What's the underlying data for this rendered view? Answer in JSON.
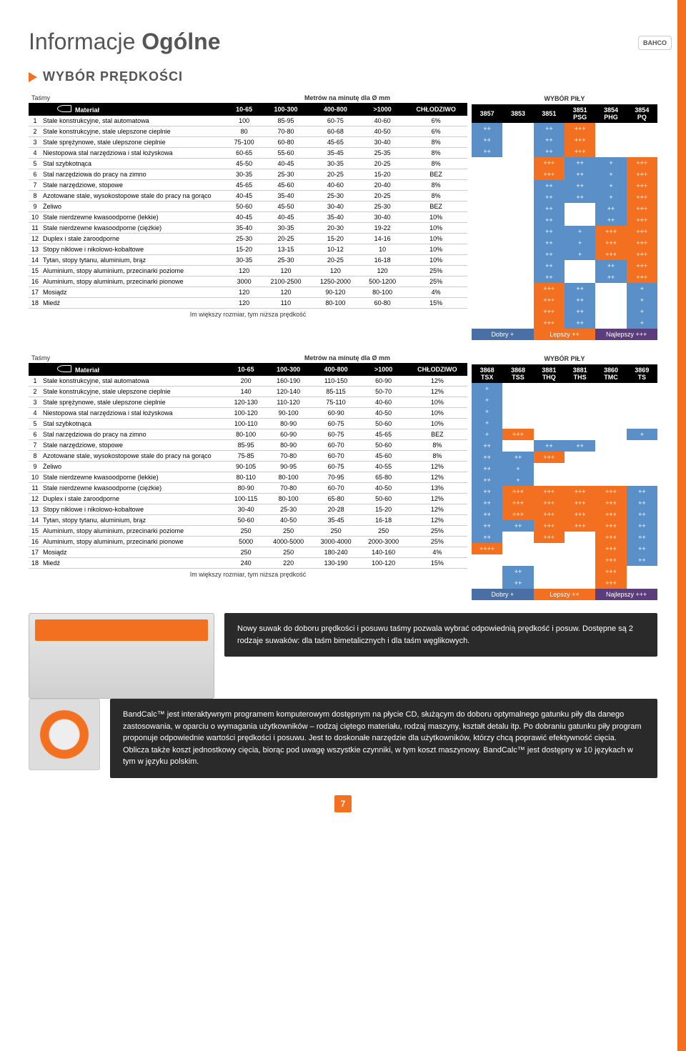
{
  "title_light": "Informacje ",
  "title_bold": "Ogólne",
  "section": "WYBÓR PRĘDKOŚCI",
  "bahco": "BAHCO",
  "tasmy": "Taśmy",
  "material": "Materiał",
  "metrow": "Metrów na minutę dla Ø mm",
  "wybor": "WYBÓR PIŁY",
  "cols1": [
    "10-65",
    "100-300",
    "400-800",
    ">1000",
    "CHŁODZIWO"
  ],
  "side_cols1": [
    "3857",
    "3853",
    "3851",
    "3851 PSG",
    "3854 PHG",
    "3854 PQ"
  ],
  "side_cols2": [
    "3868 TSX",
    "3868 TSS",
    "3881 THQ",
    "3881 THS",
    "3860 TMC",
    "3869 TS"
  ],
  "materials": [
    "Stale konstrukcyjne, stal automatowa",
    "Stale konstrukcyjne, stale ulepszone cieplnie",
    "Stale sprężynowe, stale ulepszone cieplnie",
    "Niestopowa stal narzędziowa i stal łożyskowa",
    "Stal szybkotnąca",
    "Stal narzędziowa do pracy na zimno",
    "Stale narzędziowe, stopowe",
    "Azotowane stale, wysokostopowe stale do pracy na gorąco",
    "Żeliwo",
    "Stale nierdzewne kwasoodporne (lekkie)",
    "Stale nierdzewne kwasoodporne (ciężkie)",
    "Duplex i stale żaroodporne",
    "Stopy niklowe i nikolowo-kobaltowe",
    "Tytan, stopy tytanu, aluminium, brąz",
    "Aluminium, stopy aluminium, przecinarki poziome",
    "Aluminium, stopy aluminium, przecinarki pionowe",
    "Mosiądz",
    "Miedź"
  ],
  "data1": [
    [
      "100",
      "85-95",
      "60-75",
      "40-60",
      "6%"
    ],
    [
      "80",
      "70-80",
      "60-68",
      "40-50",
      "6%"
    ],
    [
      "75-100",
      "60-80",
      "45-65",
      "30-40",
      "8%"
    ],
    [
      "60-65",
      "55-60",
      "35-45",
      "25-35",
      "8%"
    ],
    [
      "45-50",
      "40-45",
      "30-35",
      "20-25",
      "8%"
    ],
    [
      "30-35",
      "25-30",
      "20-25",
      "15-20",
      "BEZ"
    ],
    [
      "45-65",
      "45-60",
      "40-60",
      "20-40",
      "8%"
    ],
    [
      "40-45",
      "35-40",
      "25-30",
      "20-25",
      "8%"
    ],
    [
      "50-60",
      "45-50",
      "30-40",
      "25-30",
      "BEZ"
    ],
    [
      "40-45",
      "40-45",
      "35-40",
      "30-40",
      "10%"
    ],
    [
      "35-40",
      "30-35",
      "20-30",
      "19-22",
      "10%"
    ],
    [
      "25-30",
      "20-25",
      "15-20",
      "14-16",
      "10%"
    ],
    [
      "15-20",
      "13-15",
      "10-12",
      "10",
      "10%"
    ],
    [
      "30-35",
      "25-30",
      "20-25",
      "16-18",
      "10%"
    ],
    [
      "120",
      "120",
      "120",
      "120",
      "25%"
    ],
    [
      "3000",
      "2100-2500",
      "1250-2000",
      "500-1200",
      "25%"
    ],
    [
      "120",
      "120",
      "90-120",
      "80-100",
      "4%"
    ],
    [
      "120",
      "110",
      "80-100",
      "60-80",
      "15%"
    ]
  ],
  "data2": [
    [
      "200",
      "160-190",
      "110-150",
      "60-90",
      "12%"
    ],
    [
      "140",
      "120-140",
      "85-115",
      "50-70",
      "12%"
    ],
    [
      "120-130",
      "110-120",
      "75-110",
      "40-60",
      "10%"
    ],
    [
      "100-120",
      "90-100",
      "60-90",
      "40-50",
      "10%"
    ],
    [
      "100-110",
      "80-90",
      "60-75",
      "50-60",
      "10%"
    ],
    [
      "80-100",
      "60-90",
      "60-75",
      "45-65",
      "BEZ"
    ],
    [
      "85-95",
      "80-90",
      "60-70",
      "50-60",
      "8%"
    ],
    [
      "75-85",
      "70-80",
      "60-70",
      "45-60",
      "8%"
    ],
    [
      "90-105",
      "90-95",
      "60-75",
      "40-55",
      "12%"
    ],
    [
      "80-110",
      "80-100",
      "70-95",
      "65-80",
      "12%"
    ],
    [
      "80-90",
      "70-80",
      "60-70",
      "40-50",
      "13%"
    ],
    [
      "100-115",
      "80-100",
      "65-80",
      "50-60",
      "12%"
    ],
    [
      "30-40",
      "25-30",
      "20-28",
      "15-20",
      "12%"
    ],
    [
      "50-60",
      "40-50",
      "35-45",
      "16-18",
      "12%"
    ],
    [
      "250",
      "250",
      "250",
      "250",
      "25%"
    ],
    [
      "5000",
      "4000-5000",
      "3000-4000",
      "2000-3000",
      "25%"
    ],
    [
      "250",
      "250",
      "180-240",
      "140-160",
      "4%"
    ],
    [
      "240",
      "220",
      "130-190",
      "100-120",
      "15%"
    ]
  ],
  "matrix1": [
    [
      [
        "b",
        "++"
      ],
      [
        "",
        ""
      ],
      [
        "b",
        "++"
      ],
      [
        "o",
        "+++"
      ],
      [
        "",
        ""
      ],
      [
        "",
        ""
      ]
    ],
    [
      [
        "b",
        "++"
      ],
      [
        "",
        ""
      ],
      [
        "b",
        "++"
      ],
      [
        "o",
        "+++"
      ],
      [
        "",
        ""
      ],
      [
        "",
        ""
      ]
    ],
    [
      [
        "b",
        "++"
      ],
      [
        "",
        ""
      ],
      [
        "b",
        "++"
      ],
      [
        "o",
        "+++"
      ],
      [
        "",
        ""
      ],
      [
        "",
        ""
      ]
    ],
    [
      [
        "",
        ""
      ],
      [
        "",
        ""
      ],
      [
        "o",
        "+++"
      ],
      [
        "b",
        "++"
      ],
      [
        "b",
        "+"
      ],
      [
        "o",
        "+++"
      ]
    ],
    [
      [
        "",
        ""
      ],
      [
        "",
        ""
      ],
      [
        "o",
        "+++"
      ],
      [
        "b",
        "++"
      ],
      [
        "b",
        "+"
      ],
      [
        "o",
        "+++"
      ]
    ],
    [
      [
        "",
        ""
      ],
      [
        "",
        ""
      ],
      [
        "b",
        "++"
      ],
      [
        "b",
        "++"
      ],
      [
        "b",
        "+"
      ],
      [
        "o",
        "+++"
      ]
    ],
    [
      [
        "",
        ""
      ],
      [
        "",
        ""
      ],
      [
        "b",
        "++"
      ],
      [
        "b",
        "++"
      ],
      [
        "b",
        "+"
      ],
      [
        "o",
        "+++"
      ]
    ],
    [
      [
        "",
        ""
      ],
      [
        "",
        ""
      ],
      [
        "b",
        "++"
      ],
      [
        "",
        ""
      ],
      [
        "b",
        "++"
      ],
      [
        "o",
        "+++"
      ]
    ],
    [
      [
        "",
        ""
      ],
      [
        "",
        ""
      ],
      [
        "b",
        "++"
      ],
      [
        "",
        ""
      ],
      [
        "b",
        "++"
      ],
      [
        "o",
        "+++"
      ]
    ],
    [
      [
        "",
        ""
      ],
      [
        "",
        ""
      ],
      [
        "b",
        "++"
      ],
      [
        "b",
        "+"
      ],
      [
        "o",
        "+++"
      ],
      [
        "o",
        "+++"
      ]
    ],
    [
      [
        "",
        ""
      ],
      [
        "",
        ""
      ],
      [
        "b",
        "++"
      ],
      [
        "b",
        "+"
      ],
      [
        "o",
        "+++"
      ],
      [
        "o",
        "+++"
      ]
    ],
    [
      [
        "",
        ""
      ],
      [
        "",
        ""
      ],
      [
        "b",
        "++"
      ],
      [
        "b",
        "+"
      ],
      [
        "o",
        "+++"
      ],
      [
        "o",
        "+++"
      ]
    ],
    [
      [
        "",
        ""
      ],
      [
        "",
        ""
      ],
      [
        "b",
        "++"
      ],
      [
        "",
        ""
      ],
      [
        "b",
        "++"
      ],
      [
        "o",
        "+++"
      ]
    ],
    [
      [
        "",
        ""
      ],
      [
        "",
        ""
      ],
      [
        "b",
        "++"
      ],
      [
        "",
        ""
      ],
      [
        "b",
        "++"
      ],
      [
        "o",
        "+++"
      ]
    ],
    [
      [
        "",
        ""
      ],
      [
        "",
        ""
      ],
      [
        "o",
        "+++"
      ],
      [
        "b",
        "++"
      ],
      [
        "",
        ""
      ],
      [
        "b",
        "+"
      ]
    ],
    [
      [
        "",
        ""
      ],
      [
        "",
        ""
      ],
      [
        "o",
        "+++"
      ],
      [
        "b",
        "++"
      ],
      [
        "",
        ""
      ],
      [
        "b",
        "+"
      ]
    ],
    [
      [
        "",
        ""
      ],
      [
        "",
        ""
      ],
      [
        "o",
        "+++"
      ],
      [
        "b",
        "++"
      ],
      [
        "",
        ""
      ],
      [
        "b",
        "+"
      ]
    ],
    [
      [
        "",
        ""
      ],
      [
        "",
        ""
      ],
      [
        "o",
        "+++"
      ],
      [
        "b",
        "++"
      ],
      [
        "",
        ""
      ],
      [
        "b",
        "+"
      ]
    ]
  ],
  "matrix2": [
    [
      [
        "b",
        "+"
      ],
      [
        "",
        ""
      ],
      [
        "",
        ""
      ],
      [
        "",
        ""
      ],
      [
        "",
        ""
      ],
      [
        "",
        ""
      ]
    ],
    [
      [
        "b",
        "+"
      ],
      [
        "",
        ""
      ],
      [
        "",
        ""
      ],
      [
        "",
        ""
      ],
      [
        "",
        ""
      ],
      [
        "",
        ""
      ]
    ],
    [
      [
        "b",
        "+"
      ],
      [
        "",
        ""
      ],
      [
        "",
        ""
      ],
      [
        "",
        ""
      ],
      [
        "",
        ""
      ],
      [
        "",
        ""
      ]
    ],
    [
      [
        "b",
        "+"
      ],
      [
        "",
        ""
      ],
      [
        "",
        ""
      ],
      [
        "",
        ""
      ],
      [
        "",
        ""
      ],
      [
        "",
        ""
      ]
    ],
    [
      [
        "b",
        "+"
      ],
      [
        "o",
        "+++"
      ],
      [
        "",
        ""
      ],
      [
        "",
        ""
      ],
      [
        "",
        ""
      ],
      [
        "b",
        "+"
      ]
    ],
    [
      [
        "b",
        "++"
      ],
      [
        "",
        ""
      ],
      [
        "b",
        "++"
      ],
      [
        "b",
        "++"
      ],
      [
        "",
        ""
      ],
      [
        "",
        ""
      ]
    ],
    [
      [
        "b",
        "++"
      ],
      [
        "b",
        "++"
      ],
      [
        "o",
        "+++"
      ],
      [
        "",
        ""
      ],
      [
        "",
        ""
      ],
      [
        "",
        ""
      ]
    ],
    [
      [
        "b",
        "++"
      ],
      [
        "b",
        "+"
      ],
      [
        "",
        ""
      ],
      [
        "",
        ""
      ],
      [
        "",
        ""
      ],
      [
        "",
        ""
      ]
    ],
    [
      [
        "b",
        "++"
      ],
      [
        "b",
        "+"
      ],
      [
        "",
        ""
      ],
      [
        "",
        ""
      ],
      [
        "",
        ""
      ],
      [
        "",
        ""
      ]
    ],
    [
      [
        "b",
        "++"
      ],
      [
        "o",
        "+++"
      ],
      [
        "o",
        "+++"
      ],
      [
        "o",
        "+++"
      ],
      [
        "o",
        "+++"
      ],
      [
        "b",
        "++"
      ]
    ],
    [
      [
        "b",
        "++"
      ],
      [
        "o",
        "+++"
      ],
      [
        "o",
        "+++"
      ],
      [
        "o",
        "+++"
      ],
      [
        "o",
        "+++"
      ],
      [
        "b",
        "++"
      ]
    ],
    [
      [
        "b",
        "++"
      ],
      [
        "o",
        "+++"
      ],
      [
        "o",
        "+++"
      ],
      [
        "o",
        "+++"
      ],
      [
        "o",
        "+++"
      ],
      [
        "b",
        "++"
      ]
    ],
    [
      [
        "b",
        "++"
      ],
      [
        "b",
        "++"
      ],
      [
        "o",
        "+++"
      ],
      [
        "o",
        "+++"
      ],
      [
        "o",
        "+++"
      ],
      [
        "b",
        "++"
      ]
    ],
    [
      [
        "b",
        "++"
      ],
      [
        "",
        ""
      ],
      [
        "o",
        "+++"
      ],
      [
        "",
        ""
      ],
      [
        "o",
        "+++"
      ],
      [
        "b",
        "++"
      ]
    ],
    [
      [
        "o",
        "++++"
      ],
      [
        "",
        ""
      ],
      [
        "",
        ""
      ],
      [
        "",
        ""
      ],
      [
        "o",
        "+++"
      ],
      [
        "b",
        "++"
      ]
    ],
    [
      [
        "",
        ""
      ],
      [
        "",
        ""
      ],
      [
        "",
        ""
      ],
      [
        "",
        ""
      ],
      [
        "o",
        "+++"
      ],
      [
        "b",
        "++"
      ]
    ],
    [
      [
        "",
        ""
      ],
      [
        "b",
        "++"
      ],
      [
        "",
        ""
      ],
      [
        "",
        ""
      ],
      [
        "o",
        "+++"
      ],
      [
        "",
        ""
      ]
    ],
    [
      [
        "",
        ""
      ],
      [
        "b",
        "++"
      ],
      [
        "",
        ""
      ],
      [
        "",
        ""
      ],
      [
        "o",
        "+++"
      ],
      [
        "",
        ""
      ]
    ]
  ],
  "footer": "Im większy rozmiar, tym niższa prędkość",
  "legend": [
    "Dobry +",
    "Lepszy ++",
    "Najlepszy +++"
  ],
  "callout1": "Nowy suwak do doboru prędkości i posuwu taśmy pozwala wybrać odpowiednią prędkość i posuw. Dostępne są 2 rodzaje suwaków: dla taśm bimetalicznych i dla taśm węglikowych.",
  "callout2": "BandCalc™ jest interaktywnym programem komputerowym dostępnym na płycie CD, służącym do doboru optymalnego gatunku piły dla danego zastosowania, w oparciu o wymagania użytkowników – rodzaj ciętego materiału, rodzaj maszyny, kształt detalu itp. Po dobraniu gatunku piły program proponuje odpowiednie wartości prędkości i posuwu. Jest to doskonałe narzędzie dla użytkowników, którzy chcą poprawić efektywność cięcia. Oblicza także koszt jednostkowy cięcia, biorąc pod uwagę wszystkie czynniki, w tym koszt maszynowy. BandCalc™ jest dostępny w 10 językach w tym w języku polskim.",
  "page": "7"
}
